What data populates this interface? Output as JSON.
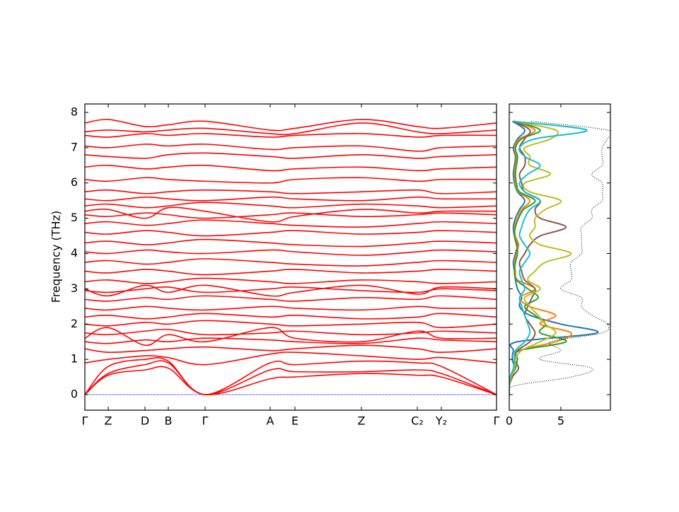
{
  "chart_data": [
    {
      "type": "line",
      "ylabel": "Frequency (THz)",
      "x": [
        0,
        0.33,
        0.85,
        1.18,
        1.7,
        2.62,
        2.97,
        3.91,
        4.7,
        5.04,
        5.82
      ],
      "xlim": [
        0,
        5.82
      ],
      "xticks": [
        {
          "value": 0,
          "label": "Γ"
        },
        {
          "value": 0.33,
          "label": "Z"
        },
        {
          "value": 0.85,
          "label": "D"
        },
        {
          "value": 1.18,
          "label": "B"
        },
        {
          "value": 1.7,
          "label": "Γ"
        },
        {
          "value": 2.62,
          "label": "A"
        },
        {
          "value": 2.97,
          "label": "E"
        },
        {
          "value": 3.91,
          "label": "Z"
        },
        {
          "value": 4.7,
          "label": "C₂"
        },
        {
          "value": 5.04,
          "label": "Y₂"
        },
        {
          "value": 5.82,
          "label": "Γ"
        }
      ],
      "ylim": [
        -0.44,
        8.24
      ],
      "yticks": [
        0,
        1,
        2,
        3,
        4,
        5,
        6,
        7,
        8
      ],
      "color": "#ff0000",
      "hline": 0,
      "hline_color": "#0000ff",
      "series": [
        {
          "values": [
            0,
            0.55,
            0.7,
            0.75,
            0,
            0.45,
            0.5,
            0.6,
            0.55,
            0.5,
            0
          ]
        },
        {
          "values": [
            0,
            0.6,
            0.85,
            0.9,
            0,
            0.7,
            0.65,
            0.65,
            0.7,
            0.6,
            0
          ]
        },
        {
          "values": [
            0,
            0.8,
            1.0,
            0.95,
            0,
            0.9,
            0.85,
            0.95,
            0.9,
            0.8,
            0
          ]
        },
        {
          "values": [
            0.9,
            1.0,
            1.1,
            1.05,
            0.85,
            1.15,
            1.2,
            1.1,
            1.0,
            1.05,
            0.9
          ]
        },
        {
          "values": [
            1.3,
            1.2,
            1.25,
            1.3,
            1.35,
            1.25,
            1.3,
            1.4,
            1.3,
            1.2,
            1.3
          ]
        },
        {
          "values": [
            1.5,
            1.45,
            1.55,
            1.5,
            1.6,
            1.55,
            1.5,
            1.45,
            1.6,
            1.55,
            1.5
          ]
        },
        {
          "values": [
            1.75,
            1.7,
            1.8,
            1.85,
            1.7,
            1.75,
            1.8,
            1.7,
            1.75,
            1.8,
            1.75
          ]
        },
        {
          "values": [
            2.0,
            1.95,
            2.05,
            2.0,
            2.1,
            2.0,
            1.95,
            2.0,
            2.05,
            1.9,
            2.0
          ]
        },
        {
          "values": [
            2.2,
            2.25,
            2.15,
            2.2,
            2.3,
            2.2,
            2.25,
            2.15,
            2.2,
            2.3,
            2.2
          ]
        },
        {
          "values": [
            2.45,
            2.4,
            2.5,
            2.45,
            2.4,
            2.5,
            2.45,
            2.4,
            2.5,
            2.45,
            2.45
          ]
        },
        {
          "values": [
            2.7,
            2.65,
            2.75,
            2.7,
            2.8,
            2.7,
            2.65,
            2.75,
            2.7,
            2.8,
            2.7
          ]
        },
        {
          "values": [
            2.95,
            2.9,
            3.0,
            3.05,
            2.9,
            3.0,
            3.05,
            2.95,
            2.9,
            3.0,
            2.95
          ]
        },
        {
          "values": [
            3.2,
            3.25,
            3.15,
            3.2,
            3.3,
            3.2,
            3.15,
            3.25,
            3.2,
            3.15,
            3.2
          ]
        },
        {
          "values": [
            3.5,
            3.45,
            3.55,
            3.5,
            3.4,
            3.5,
            3.55,
            3.45,
            3.5,
            3.55,
            3.5
          ]
        },
        {
          "values": [
            3.75,
            3.8,
            3.7,
            3.75,
            3.85,
            3.75,
            3.7,
            3.65,
            3.75,
            3.8,
            3.75
          ]
        },
        {
          "values": [
            4.05,
            4.0,
            4.1,
            4.05,
            4.0,
            4.1,
            4.05,
            3.95,
            4.05,
            4.1,
            4.05
          ]
        },
        {
          "values": [
            4.3,
            4.35,
            4.25,
            4.3,
            4.4,
            4.3,
            4.25,
            4.2,
            4.3,
            4.35,
            4.3
          ]
        },
        {
          "values": [
            4.6,
            4.55,
            4.65,
            4.6,
            4.5,
            4.6,
            4.65,
            4.55,
            4.6,
            4.65,
            4.6
          ]
        },
        {
          "values": [
            4.85,
            4.9,
            4.8,
            4.85,
            4.95,
            4.85,
            4.8,
            4.75,
            4.85,
            4.9,
            4.85
          ]
        },
        {
          "values": [
            5.1,
            5.05,
            5.15,
            5.1,
            5.0,
            5.1,
            5.15,
            5.05,
            5.1,
            5.15,
            5.1
          ]
        },
        {
          "values": [
            5.35,
            5.4,
            5.3,
            5.35,
            5.45,
            5.35,
            5.3,
            5.4,
            5.35,
            5.3,
            5.35
          ]
        },
        {
          "values": [
            5.55,
            5.5,
            5.6,
            5.55,
            5.5,
            5.6,
            5.55,
            5.5,
            5.6,
            5.55,
            5.55
          ]
        },
        {
          "values": [
            5.75,
            5.8,
            5.7,
            5.75,
            5.8,
            5.75,
            5.7,
            5.75,
            5.8,
            5.7,
            5.75
          ]
        },
        {
          "values": [
            6.1,
            6.05,
            6.15,
            6.1,
            6.05,
            6.0,
            6.1,
            6.15,
            6.05,
            6.1,
            6.1
          ]
        },
        {
          "values": [
            6.45,
            6.5,
            6.4,
            6.45,
            6.5,
            6.35,
            6.4,
            6.45,
            6.35,
            6.4,
            6.45
          ]
        },
        {
          "values": [
            6.8,
            6.75,
            6.7,
            6.8,
            6.85,
            6.75,
            6.7,
            6.8,
            6.7,
            6.75,
            6.8
          ]
        },
        {
          "values": [
            7.05,
            7.0,
            7.1,
            7.05,
            7.1,
            6.95,
            7.0,
            7.05,
            6.9,
            7.0,
            7.05
          ]
        },
        {
          "values": [
            7.35,
            7.3,
            7.4,
            7.35,
            7.4,
            7.3,
            7.35,
            7.4,
            7.3,
            7.35,
            7.35
          ]
        },
        {
          "values": [
            7.45,
            7.5,
            7.45,
            7.5,
            7.55,
            7.4,
            7.4,
            7.7,
            7.45,
            7.4,
            7.5
          ]
        },
        {
          "values": [
            7.7,
            7.8,
            7.6,
            7.65,
            7.75,
            7.5,
            7.55,
            7.8,
            7.6,
            7.55,
            7.7
          ]
        },
        {
          "values": [
            1.6,
            1.9,
            1.4,
            1.7,
            1.5,
            1.9,
            1.6,
            1.5,
            1.8,
            1.6,
            1.6
          ]
        },
        {
          "values": [
            3.0,
            2.8,
            3.1,
            2.9,
            3.1,
            2.8,
            2.9,
            3.1,
            2.85,
            3.05,
            3.0
          ]
        },
        {
          "values": [
            5.2,
            5.25,
            5.0,
            5.3,
            5.2,
            4.9,
            5.05,
            5.25,
            5.15,
            5.2,
            5.2
          ]
        }
      ]
    },
    {
      "type": "line",
      "orientation": "horizontal",
      "y": [
        0,
        0.25,
        0.5,
        0.75,
        1,
        1.25,
        1.5,
        1.75,
        2,
        2.25,
        2.5,
        2.75,
        3,
        3.25,
        3.5,
        3.75,
        4,
        4.25,
        4.5,
        4.75,
        5,
        5.25,
        5.5,
        5.75,
        6,
        6.25,
        6.5,
        6.75,
        7,
        7.25,
        7.5,
        7.75
      ],
      "xlim": [
        0,
        9.8
      ],
      "xticks": [
        0,
        5
      ],
      "ylim": [
        -0.44,
        8.24
      ],
      "yticks": [
        0,
        1,
        2,
        3,
        4,
        5,
        6,
        7,
        8
      ],
      "series": [
        {
          "color": "#1f77b4",
          "values": [
            0,
            0,
            0.2,
            0.5,
            0.3,
            0.4,
            0.8,
            8.5,
            5.0,
            2.0,
            1.0,
            1.2,
            0.8,
            0.6,
            0.5,
            0.4,
            0.6,
            0.8,
            0.5,
            0.4,
            0.6,
            1.0,
            1.5,
            0.8,
            0.5,
            0.4,
            0.5,
            0.6,
            0.4,
            0.8,
            1.5,
            0.3
          ]
        },
        {
          "color": "#ff7f0e",
          "values": [
            0,
            0,
            0.3,
            0.4,
            0.6,
            0.9,
            4.5,
            6.0,
            3.0,
            4.5,
            2.0,
            1.0,
            2.5,
            0.8,
            0.6,
            0.5,
            0.7,
            0.9,
            0.6,
            0.5,
            0.8,
            1.2,
            2.0,
            0.9,
            0.6,
            0.5,
            0.6,
            0.7,
            0.5,
            1.0,
            2.5,
            0.4
          ]
        },
        {
          "color": "#2ca02c",
          "values": [
            0,
            0,
            0.2,
            0.6,
            0.8,
            1.0,
            5.5,
            3.0,
            3.5,
            2.5,
            1.5,
            2.8,
            1.8,
            0.7,
            0.5,
            0.6,
            0.8,
            0.7,
            0.5,
            0.6,
            0.9,
            1.4,
            2.5,
            1.0,
            0.7,
            0.6,
            0.7,
            0.8,
            0.6,
            1.2,
            3.0,
            0.5
          ]
        },
        {
          "color": "#8c564b",
          "values": [
            0,
            0,
            0.3,
            0.9,
            0.5,
            0.8,
            2.0,
            2.5,
            2.0,
            1.5,
            1.8,
            2.2,
            2.5,
            1.5,
            1.2,
            1.0,
            1.5,
            2.0,
            3.0,
            5.5,
            3.0,
            2.5,
            3.0,
            1.5,
            1.2,
            1.0,
            1.5,
            1.5,
            1.0,
            1.5,
            2.0,
            0.4
          ]
        },
        {
          "color": "#bcbd22",
          "values": [
            0,
            0,
            0.2,
            0.5,
            0.6,
            1.2,
            3.0,
            4.5,
            3.5,
            2.8,
            2.0,
            1.5,
            3.0,
            1.8,
            2.5,
            3.5,
            6.0,
            3.0,
            2.0,
            2.5,
            2.5,
            3.5,
            5.0,
            2.0,
            1.5,
            4.0,
            2.0,
            2.0,
            1.5,
            4.0,
            4.5,
            0.5
          ]
        },
        {
          "color": "#17becf",
          "values": [
            0,
            0,
            0.1,
            0.4,
            0.5,
            0.6,
            1.5,
            2.0,
            1.8,
            1.5,
            1.2,
            1.0,
            1.5,
            1.2,
            1.0,
            1.5,
            2.0,
            1.5,
            1.0,
            1.2,
            1.5,
            2.0,
            3.0,
            1.5,
            1.0,
            1.8,
            3.0,
            1.5,
            1.0,
            2.5,
            7.5,
            0.4
          ]
        },
        {
          "color": "#000000",
          "style": "dotted",
          "values": [
            0,
            0.5,
            6,
            8,
            3,
            5,
            4,
            9,
            9.5,
            8,
            7,
            7,
            5,
            6,
            6,
            6,
            7,
            7,
            7,
            7,
            8,
            8,
            9,
            9,
            9,
            8,
            9,
            9,
            9,
            9.5,
            9.5,
            2
          ]
        }
      ]
    }
  ]
}
